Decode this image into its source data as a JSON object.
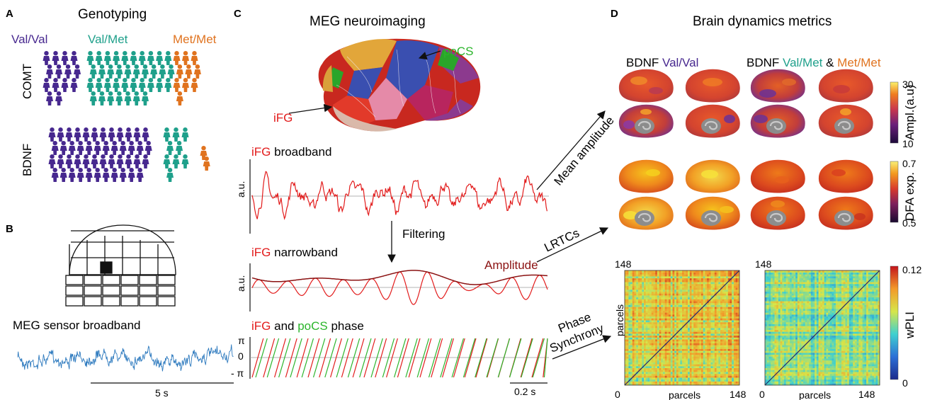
{
  "colors": {
    "valval": "#47288f",
    "valmet": "#1fa08b",
    "metmet": "#e0731f",
    "ifg": "#e21b1b",
    "pocs": "#2bb52b",
    "amplitude": "#8b1212",
    "meg_signal": "#2f7bbf",
    "text": "#1a1a1a"
  },
  "panel_a": {
    "letter": "A",
    "title": "Genotyping",
    "col_valval": "Val/Val",
    "col_valmet": "Val/Met",
    "col_metmet": "Met/Met",
    "row_comt": "COMT",
    "row_bdnf": "BDNF",
    "icon_name": "person-icon"
  },
  "panel_b": {
    "letter": "B",
    "signal_label": "MEG sensor broadband",
    "scale_label": "5 s"
  },
  "panel_c": {
    "letter": "C",
    "title": "MEG neuroimaging",
    "pocs_label": "poCS",
    "ifg_label": "iFG",
    "broadband_prefix": "iFG",
    "broadband_suffix": " broadband",
    "narrowband_prefix": "iFG",
    "narrowband_suffix": " narrowband",
    "phase_prefix_ifg": "iFG",
    "phase_and": " and ",
    "phase_pocs": "poCS",
    "phase_suffix": " phase",
    "filtering_label": "Filtering",
    "amplitude_label": "Amplitude",
    "au_label": "a.u.",
    "pi_label": "π",
    "zero_label": "0",
    "neg_pi_label": "- π",
    "scale_label": "0.2 s",
    "mean_amplitude_label": "Mean amplitude",
    "lrtc_label": "LRTCs",
    "phase_sync_label_1": "Phase",
    "phase_sync_label_2": "Synchrony"
  },
  "panel_d": {
    "letter": "D",
    "title": "Brain dynamics metrics",
    "group1_prefix": "BDNF ",
    "group1_geno": "Val/Val",
    "group2_prefix": "BDNF ",
    "group2_geno1": "Val/Met",
    "group2_amp": " & ",
    "group2_geno2": "Met/Met",
    "ampl_cbar": {
      "label": "Ampl.(a.u)",
      "max": "30",
      "min": "10"
    },
    "dfa_cbar": {
      "label": "DFA exp.",
      "max": "0.7",
      "min": "0.5"
    },
    "wpli_cbar": {
      "label": "wPLI",
      "max": "0.12",
      "min": "0"
    },
    "matrix_tick_max": "148",
    "matrix_tick_min": "0",
    "matrix_xlabel": "parcels",
    "matrix_ylabel": "parcels"
  }
}
